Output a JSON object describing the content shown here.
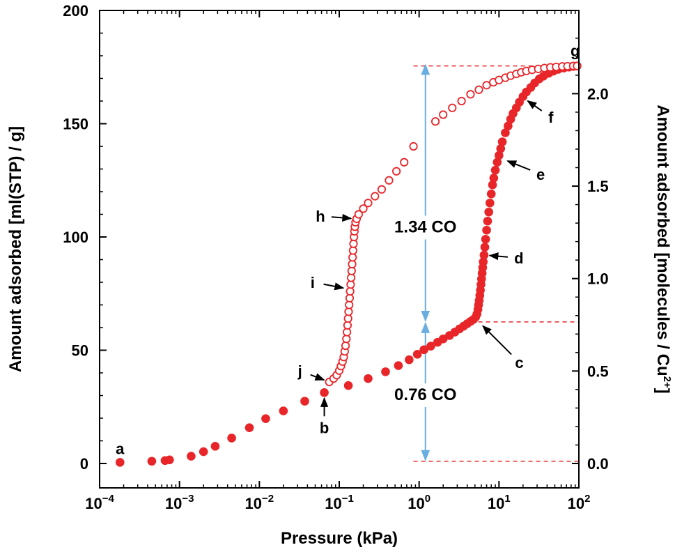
{
  "chart_data": {
    "type": "scatter",
    "xlabel": "Pressure (kPa)",
    "ylabel": "Amount adsorbed [ml(STP) / g]",
    "ylabel_right": "Amount adsorbed [molecules / Cu",
    "ylabel_right_sup": "2+",
    "ylabel_right_end": "]",
    "x_scale": "log",
    "xlim": [
      0.0001,
      100
    ],
    "ylim": [
      0,
      200
    ],
    "ylim_right": [
      0,
      2.45
    ],
    "grid": false,
    "x_ticks": [
      {
        "base": "10",
        "exp": "−4",
        "value": 0.0001
      },
      {
        "base": "10",
        "exp": "−3",
        "value": 0.001
      },
      {
        "base": "10",
        "exp": "−2",
        "value": 0.01
      },
      {
        "base": "10",
        "exp": "−1",
        "value": 0.1
      },
      {
        "base": "10",
        "exp": "0",
        "value": 1
      },
      {
        "base": "10",
        "exp": "1",
        "value": 10
      },
      {
        "base": "10",
        "exp": "2",
        "value": 100
      }
    ],
    "y_ticks": [
      {
        "label": "0",
        "value": 0
      },
      {
        "label": "50",
        "value": 50
      },
      {
        "label": "100",
        "value": 100
      },
      {
        "label": "150",
        "value": 150
      },
      {
        "label": "200",
        "value": 200
      }
    ],
    "y_ticks_right": [
      {
        "label": "0.0",
        "value": 0.0
      },
      {
        "label": "0.5",
        "value": 0.5
      },
      {
        "label": "1.0",
        "value": 1.0
      },
      {
        "label": "1.5",
        "value": 1.5
      },
      {
        "label": "2.0",
        "value": 2.0
      }
    ],
    "color": "#e8262a",
    "reference_color": "#e8262a",
    "arrow_color": "#6aaee0",
    "series": [
      {
        "marker": "filled",
        "x": [
          0.00018,
          0.00045,
          0.00066,
          0.00075,
          0.0014,
          0.002,
          0.0028,
          0.0045,
          0.0075,
          0.012,
          0.02,
          0.037,
          0.065,
          0.13,
          0.23,
          0.38,
          0.55,
          0.75,
          0.95,
          1.15,
          1.4,
          1.7,
          2.0,
          2.4,
          2.8,
          3.2,
          3.6,
          4.0,
          4.4,
          4.8,
          5.1,
          5.3,
          5.45,
          5.55,
          5.65,
          5.75,
          5.85,
          5.95,
          6.05,
          6.15,
          6.25,
          6.35,
          6.5,
          6.65,
          6.8,
          7.0,
          7.2,
          7.45,
          7.7,
          8.0,
          8.3,
          8.6,
          9.0,
          9.5,
          10.0,
          10.5,
          11.0,
          12.0,
          13.0,
          14.0,
          15.0,
          16.5,
          18.0,
          20.0,
          22.0,
          25.0,
          28.0,
          32.0,
          36.0,
          42.0,
          48.0,
          55.0,
          65.0,
          75.0,
          85.0,
          95.0
        ],
        "y": [
          0.5,
          1.0,
          1.3,
          1.6,
          3.2,
          5.2,
          7.6,
          11.2,
          15.8,
          19.8,
          23.2,
          27.5,
          31.3,
          34.4,
          37.5,
          40.5,
          43.2,
          45.8,
          48.2,
          50.2,
          51.8,
          53.5,
          55.0,
          56.5,
          58.0,
          59.4,
          60.6,
          61.7,
          62.7,
          63.6,
          64.6,
          66.0,
          68.0,
          70.0,
          72.0,
          74.2,
          76.5,
          79.0,
          81.5,
          84.0,
          86.5,
          89.0,
          92.0,
          95.5,
          99.0,
          103.0,
          107.0,
          111.0,
          115.0,
          119.0,
          123.0,
          126.0,
          129.5,
          133.0,
          136.0,
          139.0,
          142.0,
          146.0,
          149.0,
          152.0,
          154.5,
          157.0,
          159.5,
          162.0,
          164.0,
          166.0,
          168.0,
          169.8,
          171.0,
          172.3,
          173.2,
          174.0,
          174.6,
          175.0,
          175.3,
          175.5
        ]
      },
      {
        "marker": "open",
        "x": [
          0.075,
          0.085,
          0.093,
          0.1,
          0.105,
          0.11,
          0.114,
          0.117,
          0.12,
          0.123,
          0.125,
          0.127,
          0.129,
          0.131,
          0.133,
          0.135,
          0.137,
          0.139,
          0.141,
          0.143,
          0.145,
          0.147,
          0.149,
          0.151,
          0.153,
          0.155,
          0.157,
          0.16,
          0.165,
          0.175,
          0.2,
          0.23,
          0.28,
          0.34,
          0.42,
          0.52,
          0.65,
          0.85,
          1.6,
          2.0,
          2.6,
          3.4,
          4.4,
          5.6,
          7.0,
          8.5,
          10.0,
          12.0,
          14.0,
          16.5,
          19.0,
          22.0,
          26.0,
          31.0,
          37.0,
          44.0,
          52.0,
          62.0,
          72.0,
          85.0,
          95.0
        ],
        "y": [
          36.0,
          37.5,
          39.0,
          41.0,
          43.0,
          45.0,
          47.0,
          49.5,
          52.0,
          55.0,
          58.0,
          61.0,
          64.0,
          67.0,
          70.0,
          73.0,
          76.0,
          79.0,
          82.0,
          85.0,
          88.0,
          91.0,
          94.0,
          97.0,
          100.0,
          102.5,
          104.5,
          106.5,
          108.0,
          110.0,
          112.5,
          115.0,
          118.0,
          121.0,
          125.0,
          129.0,
          133.0,
          140.0,
          151.0,
          154.0,
          157.0,
          160.0,
          163.0,
          165.0,
          167.0,
          168.3,
          169.3,
          170.3,
          171.2,
          172.0,
          172.7,
          173.3,
          173.8,
          174.2,
          174.6,
          174.9,
          175.1,
          175.3,
          175.4,
          175.5,
          175.5
        ]
      }
    ],
    "reference_lines": [
      {
        "y": 175.5,
        "x_from": 0.85,
        "x_to": 100
      },
      {
        "y": 62.5,
        "x_from": 5.5,
        "x_to": 100
      },
      {
        "y": 1.0,
        "x_from": 0.85,
        "x_to": 100
      }
    ],
    "double_arrows": [
      {
        "x": 1.2,
        "y_from": 176,
        "y_to": 63,
        "label": "1.34 CO",
        "label_y": 102
      },
      {
        "x": 1.2,
        "y_from": 62,
        "y_to": 1.5,
        "label": "0.76 CO",
        "label_y": 28
      }
    ],
    "point_labels": [
      {
        "text": "a",
        "x": 0.00018,
        "y": 0.5
      },
      {
        "text": "b",
        "x": 0.065,
        "y": 31.3
      },
      {
        "text": "c",
        "x": 5.6,
        "y": 62.5
      },
      {
        "text": "d",
        "x": 6.5,
        "y": 92.0
      },
      {
        "text": "e",
        "x": 11.0,
        "y": 134.5
      },
      {
        "text": "f",
        "x": 20.0,
        "y": 161.5
      },
      {
        "text": "g",
        "x": 90.0,
        "y": 175.5
      },
      {
        "text": "h",
        "x": 0.165,
        "y": 108.0
      },
      {
        "text": "i",
        "x": 0.132,
        "y": 77.0
      },
      {
        "text": "j",
        "x": 0.075,
        "y": 36.0
      }
    ]
  }
}
